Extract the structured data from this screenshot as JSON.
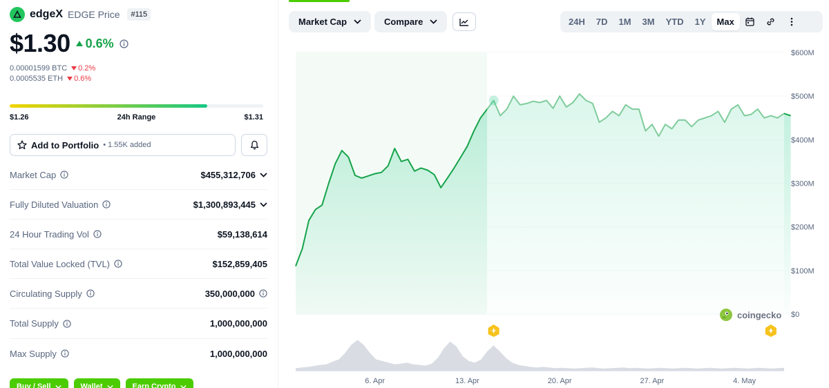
{
  "coin": {
    "name": "edgeX",
    "subtitle": "EDGE Price",
    "rank": "#115",
    "price": "$1.30",
    "change_24h": "0.6%",
    "btc_price": "0.00001599 BTC",
    "btc_change": "0.2%",
    "eth_price": "0.0005535 ETH",
    "eth_change": "0.6%"
  },
  "range_24h": {
    "low": "$1.26",
    "label": "24h Range",
    "high": "$1.31",
    "position": 0.78
  },
  "portfolio": {
    "button_label": "Add to Portfolio",
    "added_text": "• 1.55K added"
  },
  "stats": [
    {
      "label": "Market Cap",
      "value": "$455,312,706",
      "has_info": true,
      "has_chevron": true
    },
    {
      "label": "Fully Diluted Valuation",
      "value": "$1,300,893,445",
      "has_info": true,
      "has_chevron": true
    },
    {
      "label": "24 Hour Trading Vol",
      "value": "$59,138,614",
      "has_info": true,
      "has_chevron": false
    },
    {
      "label": "Total Value Locked (TVL)",
      "value": "$152,859,405",
      "has_info": true,
      "has_chevron": false
    },
    {
      "label": "Circulating Supply",
      "value": "350,000,000",
      "has_info": true,
      "has_chevron": false,
      "value_info": true
    },
    {
      "label": "Total Supply",
      "value": "1,000,000,000",
      "has_info": true,
      "has_chevron": false
    },
    {
      "label": "Max Supply",
      "value": "1,000,000,000",
      "has_info": true,
      "has_chevron": false
    }
  ],
  "bottom_buttons": [
    "Buy / Sell",
    "Wallet",
    "Earn Crypto"
  ],
  "toolbar": {
    "metric_label": "Market Cap",
    "compare_label": "Compare",
    "ranges": [
      "24H",
      "7D",
      "1M",
      "3M",
      "YTD",
      "1Y",
      "Max"
    ],
    "active_range": "Max"
  },
  "watermark": "coingecko",
  "colors": {
    "accent": "#4bcc00",
    "up": "#16a34a",
    "down": "#ea3943",
    "line": "#16a34a"
  },
  "chart_data": {
    "type": "area",
    "ylabel": "",
    "xlabel": "",
    "y_ticks": [
      "$0",
      "$100M",
      "$200M",
      "$300M",
      "$400M",
      "$500M",
      "$600M"
    ],
    "ylim": [
      0,
      600000000
    ],
    "x_ticks": [
      "6. Apr",
      "13. Apr",
      "20. Apr",
      "27. Apr",
      "4. May"
    ],
    "x_tick_days": [
      6,
      13,
      20,
      27,
      34
    ],
    "x": [
      "2025-04-01",
      "2025-04-01",
      "2025-04-02",
      "2025-04-02",
      "2025-04-03",
      "2025-04-03",
      "2025-04-04",
      "2025-04-04",
      "2025-04-05",
      "2025-04-05",
      "2025-04-06",
      "2025-04-06",
      "2025-04-07",
      "2025-04-07",
      "2025-04-08",
      "2025-04-08",
      "2025-04-09",
      "2025-04-09",
      "2025-04-10",
      "2025-04-10",
      "2025-04-11",
      "2025-04-11",
      "2025-04-12",
      "2025-04-12",
      "2025-04-13",
      "2025-04-13",
      "2025-04-14",
      "2025-04-14",
      "2025-04-15",
      "2025-04-15",
      "2025-04-16",
      "2025-04-16",
      "2025-04-17",
      "2025-04-17",
      "2025-04-18",
      "2025-04-18",
      "2025-04-19",
      "2025-04-19",
      "2025-04-20",
      "2025-04-20",
      "2025-04-21",
      "2025-04-21",
      "2025-04-22",
      "2025-04-22",
      "2025-04-23",
      "2025-04-23",
      "2025-04-24",
      "2025-04-24",
      "2025-04-25",
      "2025-04-25",
      "2025-04-26",
      "2025-04-26",
      "2025-04-27",
      "2025-04-27",
      "2025-04-28",
      "2025-04-28",
      "2025-04-29",
      "2025-04-29",
      "2025-04-30",
      "2025-04-30",
      "2025-05-01",
      "2025-05-01",
      "2025-05-02",
      "2025-05-02",
      "2025-05-03",
      "2025-05-03",
      "2025-05-04",
      "2025-05-04",
      "2025-05-05",
      "2025-05-05",
      "2025-05-06",
      "2025-05-06",
      "2025-05-07",
      "2025-05-07",
      "2025-05-08",
      "2025-05-08"
    ],
    "series": [
      {
        "values": [
          110000000,
          150000000,
          215000000,
          240000000,
          250000000,
          300000000,
          345000000,
          375000000,
          360000000,
          318000000,
          312000000,
          317000000,
          322000000,
          325000000,
          340000000,
          380000000,
          350000000,
          355000000,
          328000000,
          335000000,
          330000000,
          320000000,
          290000000,
          312000000,
          335000000,
          360000000,
          385000000,
          420000000,
          450000000,
          470000000,
          490000000,
          455000000,
          470000000,
          500000000,
          480000000,
          483000000,
          488000000,
          485000000,
          490000000,
          472000000,
          500000000,
          475000000,
          485000000,
          505000000,
          490000000,
          483000000,
          440000000,
          450000000,
          465000000,
          455000000,
          480000000,
          470000000,
          470000000,
          420000000,
          435000000,
          408000000,
          435000000,
          425000000,
          445000000,
          445000000,
          430000000,
          445000000,
          450000000,
          455000000,
          465000000,
          440000000,
          470000000,
          480000000,
          455000000,
          458000000,
          470000000,
          450000000,
          455000000,
          450000000,
          460000000,
          455000000
        ]
      }
    ],
    "highlight": {
      "start_day": 0,
      "end_day": 14.5
    },
    "volume_profile": [
      0.08,
      0.1,
      0.12,
      0.15,
      0.18,
      0.2,
      0.28,
      0.35,
      0.55,
      0.8,
      0.95,
      0.8,
      0.55,
      0.35,
      0.3,
      0.25,
      0.2,
      0.22,
      0.25,
      0.2,
      0.18,
      0.16,
      0.22,
      0.4,
      0.7,
      0.9,
      0.75,
      0.45,
      0.3,
      0.25,
      0.35,
      0.6,
      0.78,
      0.6,
      0.4,
      0.25,
      0.18,
      0.15,
      0.12,
      0.1,
      0.12,
      0.1,
      0.08,
      0.09,
      0.08,
      0.07,
      0.08,
      0.09,
      0.1,
      0.08,
      0.07,
      0.08,
      0.09,
      0.1,
      0.08,
      0.09,
      0.08,
      0.07,
      0.08,
      0.09,
      0.08,
      0.07,
      0.08,
      0.09,
      0.08,
      0.07,
      0.08,
      0.09,
      0.08,
      0.07,
      0.08,
      0.09,
      0.08,
      0.07,
      0.08,
      0.09,
      0.08,
      0.07,
      0.08,
      0.09
    ],
    "markers_days": [
      15,
      36
    ]
  }
}
